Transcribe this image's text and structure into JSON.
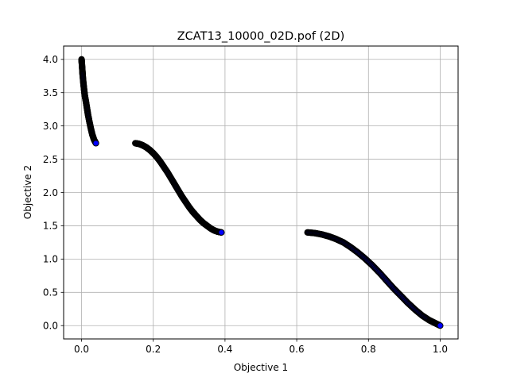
{
  "chart_data": {
    "type": "scatter",
    "title": "ZCAT13_10000_02D.pof (2D)",
    "xlabel": "Objective 1",
    "ylabel": "Objective 2",
    "xlim": [
      -0.05,
      1.05
    ],
    "ylim": [
      -0.2,
      4.2
    ],
    "xticks": [
      0.0,
      0.2,
      0.4,
      0.6,
      0.8,
      1.0
    ],
    "xtick_labels": [
      "0.0",
      "0.2",
      "0.4",
      "0.6",
      "0.8",
      "1.0"
    ],
    "yticks": [
      0.0,
      0.5,
      1.0,
      1.5,
      2.0,
      2.5,
      3.0,
      3.5,
      4.0
    ],
    "ytick_labels": [
      "0.0",
      "0.5",
      "1.0",
      "1.5",
      "2.0",
      "2.5",
      "3.0",
      "3.5",
      "4.0"
    ],
    "grid": true,
    "marker_color": "#0000ff",
    "marker_edge_color": "#000000",
    "segments": [
      {
        "x": [
          0.0,
          0.001,
          0.002,
          0.003,
          0.005,
          0.007,
          0.009,
          0.012,
          0.015,
          0.018,
          0.022,
          0.026,
          0.03,
          0.035,
          0.04
        ],
        "y": [
          4.0,
          3.93,
          3.85,
          3.77,
          3.65,
          3.55,
          3.46,
          3.37,
          3.27,
          3.17,
          3.06,
          2.96,
          2.87,
          2.79,
          2.74
        ]
      },
      {
        "x": [
          0.15,
          0.16,
          0.17,
          0.18,
          0.19,
          0.2,
          0.21,
          0.22,
          0.23,
          0.24,
          0.25,
          0.26,
          0.27,
          0.28,
          0.29,
          0.3,
          0.31,
          0.32,
          0.33,
          0.34,
          0.35,
          0.36,
          0.37,
          0.38,
          0.39
        ],
        "y": [
          2.74,
          2.73,
          2.71,
          2.68,
          2.64,
          2.59,
          2.53,
          2.46,
          2.38,
          2.3,
          2.21,
          2.12,
          2.03,
          1.94,
          1.86,
          1.78,
          1.71,
          1.65,
          1.59,
          1.54,
          1.5,
          1.46,
          1.43,
          1.41,
          1.4
        ]
      },
      {
        "x": [
          0.63,
          0.65,
          0.67,
          0.69,
          0.71,
          0.73,
          0.75,
          0.77,
          0.79,
          0.81,
          0.83,
          0.85,
          0.87,
          0.89,
          0.91,
          0.93,
          0.95,
          0.97,
          0.985,
          1.0
        ],
        "y": [
          1.4,
          1.39,
          1.37,
          1.34,
          1.3,
          1.25,
          1.18,
          1.1,
          1.01,
          0.91,
          0.8,
          0.68,
          0.56,
          0.45,
          0.34,
          0.24,
          0.15,
          0.08,
          0.04,
          0.0
        ]
      }
    ]
  }
}
